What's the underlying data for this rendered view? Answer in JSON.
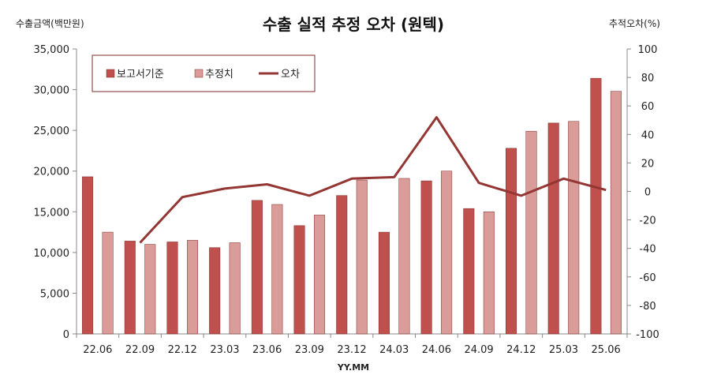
{
  "chart_data": {
    "type": "bar",
    "title": "수출 실적 추정 오차 (원텍)",
    "ylabel_left": "수출금액(백만원)",
    "ylabel_right": "추적오차(%)",
    "xlabel": "YY.MM",
    "categories": [
      "22.06",
      "22.09",
      "22.12",
      "23.03",
      "23.06",
      "23.09",
      "23.12",
      "24.03",
      "24.06",
      "24.09",
      "24.12",
      "25.03",
      "25.06"
    ],
    "series": [
      {
        "name": "보고서기준",
        "type": "bar",
        "axis": "left",
        "color": "#C0504D",
        "values": [
          19300,
          11400,
          11300,
          10600,
          16400,
          13300,
          17000,
          12500,
          18800,
          15400,
          22800,
          25900,
          31400
        ]
      },
      {
        "name": "추정치",
        "type": "bar",
        "axis": "left",
        "color": "#D99C98",
        "values": [
          12500,
          11000,
          11500,
          11200,
          15900,
          14600,
          18900,
          19100,
          20000,
          15000,
          24900,
          26100,
          29800
        ]
      },
      {
        "name": "오차",
        "type": "line",
        "axis": "right",
        "color": "#943634",
        "values": [
          null,
          -36,
          -4,
          2,
          5,
          -3,
          9,
          10,
          52,
          6,
          -3,
          9,
          1
        ]
      }
    ],
    "ylim_left": [
      0,
      35000
    ],
    "yticks_left": [
      "35,000",
      "30,000",
      "25,000",
      "20,000",
      "15,000",
      "10,000",
      "5,000",
      "0"
    ],
    "ylim_right": [
      -100,
      100
    ],
    "yticks_right": [
      "100",
      "80",
      "60",
      "40",
      "20",
      "0",
      "-20",
      "-40",
      "-60",
      "-80",
      "-100"
    ],
    "grid": false,
    "legend_position": "top-left"
  }
}
